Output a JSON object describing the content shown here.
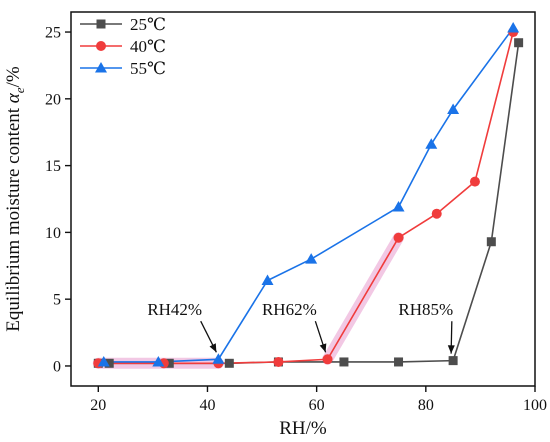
{
  "chart_data": {
    "type": "line",
    "xlabel": "RH/%",
    "ylabel_prefix": "Equilibrium moisture content ",
    "ylabel_symbol": "α",
    "ylabel_subscript": "e",
    "ylabel_suffix": "/%",
    "xlim": [
      15,
      100
    ],
    "ylim": [
      -1.5,
      26.5
    ],
    "xticks": [
      20,
      40,
      60,
      80,
      100
    ],
    "yticks": [
      0,
      5,
      10,
      15,
      20,
      25
    ],
    "legend_position": "top-left",
    "grid": false,
    "series": [
      {
        "name": "25℃",
        "color": "#4d4d4d",
        "marker": "square",
        "x": [
          20,
          22,
          33,
          44,
          53,
          65,
          75,
          85,
          92,
          97
        ],
        "y": [
          0.2,
          0.2,
          0.2,
          0.2,
          0.3,
          0.3,
          0.3,
          0.4,
          9.3,
          24.2
        ]
      },
      {
        "name": "40℃",
        "color": "#f03c3c",
        "marker": "circle",
        "x": [
          20,
          32,
          42,
          53,
          62,
          75,
          82,
          89,
          96
        ],
        "y": [
          0.2,
          0.2,
          0.2,
          0.3,
          0.5,
          9.6,
          11.4,
          13.8,
          25.0
        ]
      },
      {
        "name": "55℃",
        "color": "#1a73e8",
        "marker": "triangle",
        "x": [
          21,
          31,
          42,
          51,
          59,
          75,
          81,
          85,
          96
        ],
        "y": [
          0.3,
          0.3,
          0.5,
          6.4,
          8.0,
          11.9,
          16.6,
          19.2,
          25.3
        ]
      }
    ],
    "highlight_segments": [
      {
        "x": [
          20,
          42
        ],
        "y": [
          0.2,
          0.2
        ],
        "color": "#f2c8e4"
      },
      {
        "x": [
          62,
          75
        ],
        "y": [
          0.5,
          9.6
        ],
        "color": "#f2c8e4"
      }
    ],
    "annotations": [
      {
        "text": "RH42%",
        "x": 42,
        "y": 0.5,
        "text_x": 34,
        "text_y": 3.8
      },
      {
        "text": "RH62%",
        "x": 62,
        "y": 0.5,
        "text_x": 55,
        "text_y": 3.8
      },
      {
        "text": "RH85%",
        "x": 85,
        "y": 0.4,
        "text_x": 80,
        "text_y": 3.8
      }
    ]
  }
}
